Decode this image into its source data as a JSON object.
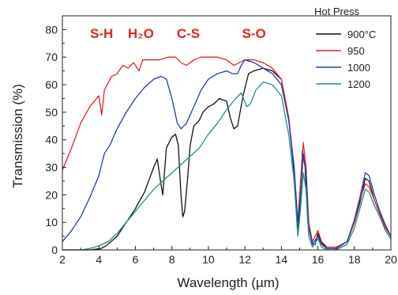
{
  "chart_data": {
    "type": "line",
    "xlabel": "Wavelength  (µm)",
    "ylabel": "Transmission  (%)",
    "xlim": [
      2,
      20
    ],
    "ylim": [
      0,
      85
    ],
    "x_ticks": [
      "2",
      "4",
      "6",
      "8",
      "10",
      "12",
      "14",
      "16",
      "18",
      "20"
    ],
    "y_ticks": [
      "0",
      "10",
      "20",
      "30",
      "40",
      "50",
      "60",
      "70",
      "80"
    ],
    "grid": false,
    "legend": {
      "title": "Hot Press",
      "placement": "top-right",
      "entries": [
        "900°C",
        "950",
        "1000",
        "1200"
      ]
    },
    "annotations": [
      {
        "text": "S-H",
        "x": 4.15,
        "y": 77,
        "color": "#e52421"
      },
      {
        "text": "H₂O",
        "x": 6.3,
        "y": 77,
        "color": "#e52421"
      },
      {
        "text": "C-S",
        "x": 8.9,
        "y": 77,
        "color": "#e52421"
      },
      {
        "text": "S-O",
        "x": 12.5,
        "y": 77,
        "color": "#e52421"
      }
    ],
    "series": [
      {
        "name": "900°C",
        "color": "#111111",
        "points": [
          [
            2,
            0
          ],
          [
            3.5,
            0
          ],
          [
            4.1,
            0.5
          ],
          [
            4.4,
            1.5
          ],
          [
            5,
            5
          ],
          [
            5.5,
            10
          ],
          [
            6,
            15
          ],
          [
            6.5,
            21
          ],
          [
            7,
            30
          ],
          [
            7.2,
            33
          ],
          [
            7.4,
            24
          ],
          [
            7.5,
            20
          ],
          [
            7.7,
            37
          ],
          [
            8,
            41
          ],
          [
            8.2,
            42
          ],
          [
            8.35,
            38
          ],
          [
            8.5,
            20
          ],
          [
            8.6,
            12
          ],
          [
            8.7,
            14
          ],
          [
            8.85,
            25
          ],
          [
            9,
            38
          ],
          [
            9.2,
            45
          ],
          [
            9.5,
            47
          ],
          [
            9.7,
            50
          ],
          [
            10,
            52
          ],
          [
            10.3,
            53
          ],
          [
            10.6,
            55
          ],
          [
            11,
            54
          ],
          [
            11.2,
            48
          ],
          [
            11.4,
            44
          ],
          [
            11.6,
            45
          ],
          [
            11.9,
            56
          ],
          [
            12.2,
            64
          ],
          [
            12.5,
            65
          ],
          [
            13,
            66
          ],
          [
            13.5,
            65
          ],
          [
            14,
            62
          ],
          [
            14.4,
            48
          ],
          [
            14.7,
            28
          ],
          [
            14.9,
            6
          ],
          [
            15.05,
            20
          ],
          [
            15.15,
            36
          ],
          [
            15.3,
            30
          ],
          [
            15.45,
            10
          ],
          [
            15.7,
            2
          ],
          [
            15.85,
            2
          ],
          [
            16,
            6
          ],
          [
            16.15,
            3
          ],
          [
            16.5,
            0.5
          ],
          [
            17,
            0.5
          ],
          [
            17.6,
            3
          ],
          [
            18,
            10
          ],
          [
            18.3,
            17
          ],
          [
            18.6,
            26
          ],
          [
            18.8,
            25
          ],
          [
            19.1,
            18
          ],
          [
            19.4,
            13
          ],
          [
            19.7,
            8
          ],
          [
            20,
            5
          ]
        ]
      },
      {
        "name": "950",
        "color": "#e52421",
        "points": [
          [
            2,
            29
          ],
          [
            2.5,
            37
          ],
          [
            3,
            46
          ],
          [
            3.5,
            52
          ],
          [
            4,
            56
          ],
          [
            4.15,
            49
          ],
          [
            4.3,
            58
          ],
          [
            4.7,
            63
          ],
          [
            5,
            64
          ],
          [
            5.3,
            67
          ],
          [
            5.6,
            66
          ],
          [
            5.9,
            68
          ],
          [
            6.2,
            65
          ],
          [
            6.4,
            69
          ],
          [
            6.7,
            69
          ],
          [
            7,
            69
          ],
          [
            7.3,
            69
          ],
          [
            7.8,
            70
          ],
          [
            8.2,
            70
          ],
          [
            8.5,
            68
          ],
          [
            8.8,
            67
          ],
          [
            9.2,
            69
          ],
          [
            9.6,
            70
          ],
          [
            10,
            70
          ],
          [
            10.5,
            70
          ],
          [
            11,
            69
          ],
          [
            11.4,
            67
          ],
          [
            11.7,
            68
          ],
          [
            12,
            69
          ],
          [
            12.5,
            69
          ],
          [
            13,
            68
          ],
          [
            13.5,
            66
          ],
          [
            14,
            62
          ],
          [
            14.4,
            48
          ],
          [
            14.7,
            30
          ],
          [
            14.9,
            10
          ],
          [
            15.05,
            25
          ],
          [
            15.2,
            39
          ],
          [
            15.35,
            30
          ],
          [
            15.5,
            10
          ],
          [
            15.7,
            3
          ],
          [
            16,
            7
          ],
          [
            16.2,
            3
          ],
          [
            16.5,
            1
          ],
          [
            17,
            1
          ],
          [
            17.6,
            3
          ],
          [
            18,
            10
          ],
          [
            18.3,
            18
          ],
          [
            18.6,
            24
          ],
          [
            18.8,
            23
          ],
          [
            19.1,
            18
          ],
          [
            19.4,
            13
          ],
          [
            19.7,
            8
          ],
          [
            20,
            5
          ]
        ]
      },
      {
        "name": "1000",
        "color": "#1f3eab",
        "points": [
          [
            2,
            3
          ],
          [
            2.5,
            7
          ],
          [
            3,
            12
          ],
          [
            3.5,
            19
          ],
          [
            4,
            27
          ],
          [
            4.3,
            35
          ],
          [
            4.6,
            38
          ],
          [
            5,
            44
          ],
          [
            5.5,
            50
          ],
          [
            6,
            55
          ],
          [
            6.5,
            59
          ],
          [
            7,
            62
          ],
          [
            7.4,
            63
          ],
          [
            7.7,
            62
          ],
          [
            8,
            55
          ],
          [
            8.3,
            46
          ],
          [
            8.5,
            44
          ],
          [
            8.8,
            46
          ],
          [
            9.2,
            52
          ],
          [
            9.6,
            58
          ],
          [
            10,
            62
          ],
          [
            10.5,
            64
          ],
          [
            11,
            65
          ],
          [
            11.3,
            64
          ],
          [
            11.6,
            64
          ],
          [
            11.8,
            67
          ],
          [
            12,
            69
          ],
          [
            12.5,
            68
          ],
          [
            13,
            66
          ],
          [
            13.5,
            64
          ],
          [
            14,
            60
          ],
          [
            14.4,
            47
          ],
          [
            14.7,
            30
          ],
          [
            14.9,
            10
          ],
          [
            15.05,
            20
          ],
          [
            15.2,
            35
          ],
          [
            15.35,
            28
          ],
          [
            15.5,
            8
          ],
          [
            15.7,
            2
          ],
          [
            16,
            5
          ],
          [
            16.2,
            2
          ],
          [
            16.5,
            0.5
          ],
          [
            17,
            0.5
          ],
          [
            17.6,
            3
          ],
          [
            18,
            11
          ],
          [
            18.3,
            19
          ],
          [
            18.6,
            28
          ],
          [
            18.8,
            27
          ],
          [
            19.1,
            20
          ],
          [
            19.4,
            14
          ],
          [
            19.7,
            9
          ],
          [
            20,
            5
          ]
        ]
      },
      {
        "name": "1200",
        "color": "#1f8f8a",
        "points": [
          [
            2,
            0
          ],
          [
            3,
            0
          ],
          [
            3.5,
            0.5
          ],
          [
            4,
            1.5
          ],
          [
            4.5,
            3
          ],
          [
            5,
            6
          ],
          [
            6,
            14
          ],
          [
            7,
            22
          ],
          [
            8,
            28
          ],
          [
            8.5,
            31
          ],
          [
            9,
            34
          ],
          [
            9.5,
            37
          ],
          [
            10,
            42
          ],
          [
            10.5,
            46
          ],
          [
            11,
            51
          ],
          [
            11.5,
            55
          ],
          [
            11.8,
            57
          ],
          [
            12.1,
            52
          ],
          [
            12.3,
            53
          ],
          [
            12.6,
            58
          ],
          [
            13,
            61
          ],
          [
            13.5,
            60
          ],
          [
            14,
            56
          ],
          [
            14.4,
            42
          ],
          [
            14.7,
            25
          ],
          [
            14.9,
            5
          ],
          [
            15.05,
            15
          ],
          [
            15.2,
            28
          ],
          [
            15.35,
            22
          ],
          [
            15.5,
            5
          ],
          [
            15.7,
            1
          ],
          [
            16,
            4
          ],
          [
            16.2,
            1
          ],
          [
            16.5,
            0
          ],
          [
            17,
            0
          ],
          [
            17.6,
            2
          ],
          [
            18,
            8
          ],
          [
            18.3,
            15
          ],
          [
            18.6,
            22
          ],
          [
            18.8,
            21
          ],
          [
            19.1,
            16
          ],
          [
            19.4,
            12
          ],
          [
            19.7,
            7
          ],
          [
            20,
            4
          ]
        ]
      }
    ]
  }
}
